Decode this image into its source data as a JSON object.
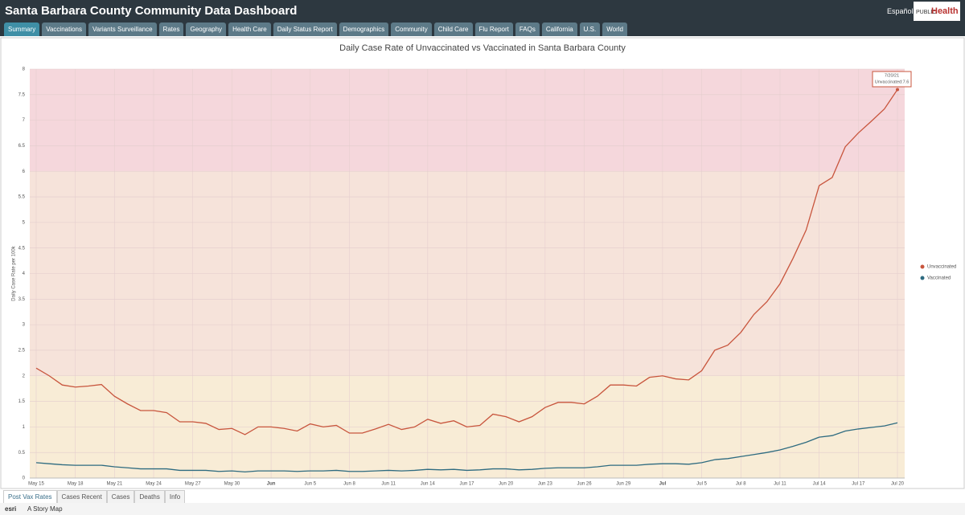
{
  "header": {
    "title": "Santa Barbara County Community Data Dashboard",
    "language": "Español",
    "logo": [
      "PUBLIC",
      "Health"
    ]
  },
  "tabs": [
    "Summary",
    "Vaccinations",
    "Variants Surveillance",
    "Rates",
    "Geography",
    "Health Care",
    "Daily Status Report",
    "Demographics",
    "Community",
    "Child Care",
    "Flu Report",
    "FAQs",
    "California",
    "U.S.",
    "World"
  ],
  "bottom_tabs": [
    "Post Vax Rates",
    "Cases Recent",
    "Cases",
    "Deaths",
    "Info"
  ],
  "footer": {
    "brand": "esri",
    "text": "A Story Map"
  },
  "chart_data": {
    "type": "line",
    "title": "Daily Case Rate of Unvaccinated vs Vaccinated in Santa Barbara County",
    "y_label": "Daily Case Rate per 100k",
    "categories": [
      "May 15",
      null,
      null,
      "May 18",
      null,
      null,
      "May 21",
      null,
      null,
      "May 24",
      null,
      null,
      "May 27",
      null,
      null,
      "May 30",
      null,
      null,
      "Jun",
      null,
      null,
      "Jun 5",
      null,
      null,
      "Jun 8",
      null,
      null,
      "Jun 11",
      null,
      null,
      "Jun 14",
      null,
      null,
      "Jun 17",
      null,
      null,
      "Jun 20",
      null,
      null,
      "Jun 23",
      null,
      null,
      "Jun 26",
      null,
      null,
      "Jun 29",
      null,
      null,
      "Jul",
      null,
      null,
      "Jul 5",
      null,
      null,
      "Jul 8",
      null,
      null,
      "Jul 11",
      null,
      null,
      "Jul 14",
      null,
      null,
      "Jul 17",
      null,
      null,
      "Jul 20"
    ],
    "series": [
      {
        "name": "Unvaccinated",
        "color": "#c8553d",
        "values": [
          2.15,
          2.0,
          1.82,
          1.78,
          1.8,
          1.83,
          1.6,
          1.45,
          1.32,
          1.32,
          1.28,
          1.1,
          1.1,
          1.07,
          0.95,
          0.97,
          0.85,
          1.0,
          1.0,
          0.97,
          0.92,
          1.06,
          1.0,
          1.03,
          0.88,
          0.88,
          0.96,
          1.05,
          0.95,
          1.0,
          1.15,
          1.07,
          1.12,
          1.0,
          1.03,
          1.25,
          1.2,
          1.1,
          1.2,
          1.38,
          1.48,
          1.48,
          1.45,
          1.6,
          1.82,
          1.82,
          1.8,
          1.97,
          2.0,
          1.94,
          1.92,
          2.1,
          2.5,
          2.6,
          2.85,
          3.2,
          3.45,
          3.8,
          4.3,
          4.85,
          5.72,
          5.88,
          6.48,
          6.75,
          6.98,
          7.22,
          7.6
        ]
      },
      {
        "name": "Vaccinated",
        "color": "#2e6b80",
        "values": [
          0.3,
          0.28,
          0.26,
          0.25,
          0.25,
          0.25,
          0.22,
          0.2,
          0.18,
          0.18,
          0.18,
          0.15,
          0.15,
          0.15,
          0.13,
          0.14,
          0.12,
          0.14,
          0.14,
          0.14,
          0.13,
          0.14,
          0.14,
          0.15,
          0.13,
          0.13,
          0.14,
          0.15,
          0.14,
          0.15,
          0.17,
          0.16,
          0.17,
          0.15,
          0.16,
          0.18,
          0.18,
          0.16,
          0.17,
          0.19,
          0.2,
          0.2,
          0.2,
          0.22,
          0.25,
          0.25,
          0.25,
          0.27,
          0.28,
          0.28,
          0.27,
          0.3,
          0.36,
          0.38,
          0.42,
          0.46,
          0.5,
          0.55,
          0.62,
          0.7,
          0.8,
          0.83,
          0.92,
          0.96,
          0.99,
          1.02,
          1.08
        ]
      }
    ],
    "ylim": [
      0,
      8
    ],
    "yticks": [
      0,
      0.5,
      1,
      1.5,
      2,
      2.5,
      3,
      3.5,
      4,
      4.5,
      5,
      5.5,
      6,
      6.5,
      7,
      7.5,
      8
    ],
    "grid": true,
    "bands": [
      {
        "from": 0,
        "to": 2,
        "color": "#f8ecd6"
      },
      {
        "from": 2,
        "to": 6,
        "color": "#f6e3da"
      },
      {
        "from": 6,
        "to": 8,
        "color": "#f5d7dc"
      }
    ],
    "tooltip": {
      "date": "7/20/21",
      "text": "Unvaccinated:7.6"
    }
  }
}
